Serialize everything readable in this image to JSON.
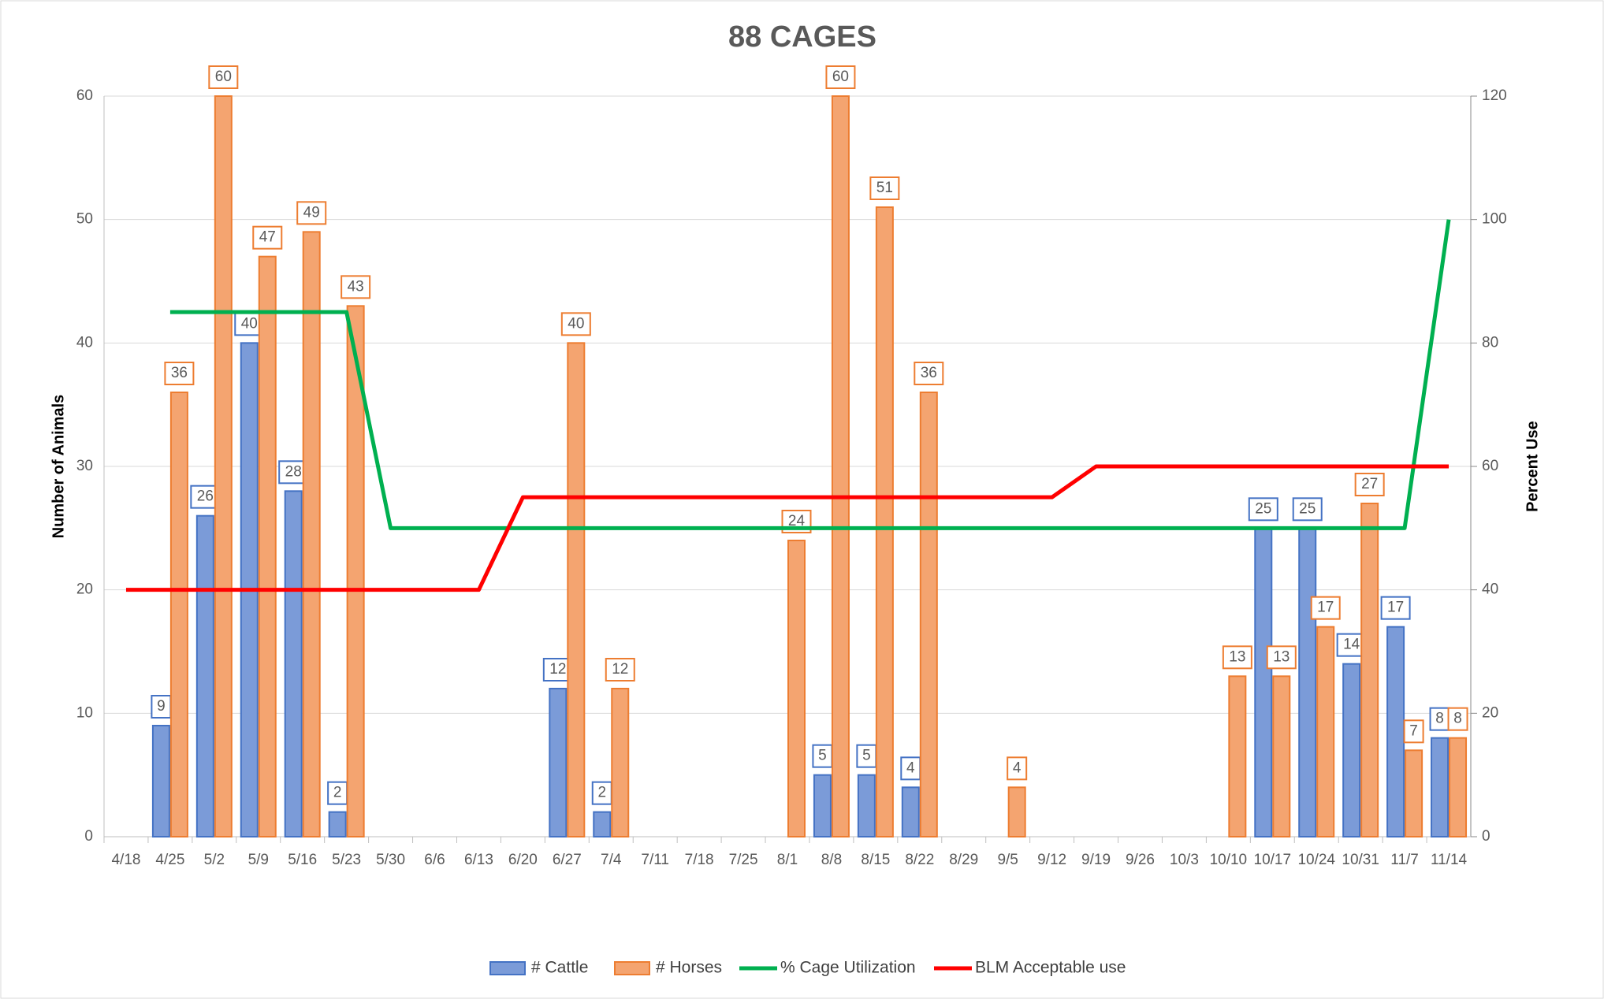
{
  "chart_data": {
    "type": "bar-line",
    "title": "88 CAGES",
    "y_label": "Number of Animals",
    "y2_label": "Percent Use",
    "categories": [
      "4/18",
      "4/25",
      "5/2",
      "5/9",
      "5/16",
      "5/23",
      "5/30",
      "6/6",
      "6/13",
      "6/20",
      "6/27",
      "7/4",
      "7/11",
      "7/18",
      "7/25",
      "8/1",
      "8/8",
      "8/15",
      "8/22",
      "8/29",
      "9/5",
      "9/12",
      "9/19",
      "9/26",
      "10/3",
      "10/10",
      "10/17",
      "10/24",
      "10/31",
      "11/7",
      "11/14"
    ],
    "ylim": [
      0,
      60
    ],
    "yticks": [
      0,
      10,
      20,
      30,
      40,
      50,
      60
    ],
    "y2lim": [
      0,
      120
    ],
    "y2ticks": [
      0,
      20,
      40,
      60,
      80,
      100,
      120
    ],
    "grid": true,
    "legend": "bottom",
    "series": [
      {
        "name": "# Cattle",
        "kind": "bar",
        "color": "#4472c4",
        "values": [
          null,
          9,
          26,
          40,
          28,
          2,
          null,
          null,
          null,
          null,
          12,
          2,
          null,
          null,
          null,
          null,
          5,
          5,
          4,
          null,
          null,
          null,
          null,
          null,
          null,
          null,
          25,
          25,
          14,
          17,
          8
        ]
      },
      {
        "name": "# Horses",
        "kind": "bar",
        "color": "#ed7d31",
        "values": [
          null,
          36,
          60,
          47,
          49,
          43,
          null,
          null,
          null,
          null,
          40,
          12,
          null,
          null,
          null,
          24,
          60,
          51,
          36,
          null,
          4,
          null,
          null,
          null,
          null,
          13,
          13,
          17,
          27,
          7,
          8
        ]
      },
      {
        "name": "% Cage Utilization",
        "kind": "line",
        "axis": "y2",
        "color": "#00b050",
        "values": [
          null,
          85,
          85,
          85,
          85,
          85,
          50,
          50,
          50,
          50,
          50,
          50,
          50,
          50,
          50,
          50,
          50,
          50,
          50,
          50,
          50,
          50,
          50,
          50,
          50,
          50,
          50,
          50,
          50,
          50,
          100
        ]
      },
      {
        "name": "BLM Acceptable use",
        "kind": "line",
        "axis": "y2",
        "color": "#ff0000",
        "values": [
          40,
          40,
          40,
          40,
          40,
          40,
          40,
          40,
          40,
          55,
          55,
          55,
          55,
          55,
          55,
          55,
          55,
          55,
          55,
          55,
          55,
          55,
          60,
          60,
          60,
          60,
          60,
          60,
          60,
          60,
          60
        ]
      }
    ]
  }
}
